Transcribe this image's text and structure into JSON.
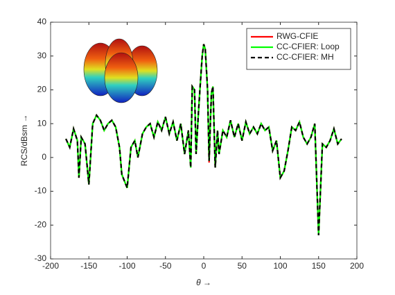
{
  "chart_data": {
    "type": "line",
    "xlabel": "θ →",
    "ylabel": "RCS/dBsm →",
    "x": [
      -180,
      -175,
      -170,
      -165,
      -163,
      -160,
      -155,
      -150,
      -145,
      -140,
      -135,
      -130,
      -125,
      -120,
      -115,
      -110,
      -107,
      -100,
      -95,
      -90,
      -86,
      -80,
      -75,
      -70,
      -65,
      -60,
      -55,
      -50,
      -45,
      -40,
      -35,
      -30,
      -25,
      -20,
      -17,
      -15,
      -12,
      -10,
      -7,
      -5,
      -2,
      0,
      2,
      5,
      7,
      10,
      12,
      15,
      18,
      20,
      25,
      30,
      35,
      40,
      45,
      50,
      55,
      60,
      65,
      70,
      75,
      80,
      85,
      90,
      95,
      100,
      105,
      110,
      115,
      120,
      125,
      130,
      135,
      140,
      145,
      150,
      155,
      160,
      165,
      170,
      175,
      180
    ],
    "series": [
      {
        "name": "RWG-CFIE",
        "color": "#ff0000",
        "dash": false,
        "values": [
          5.5,
          3,
          8.5,
          5,
          -6,
          6,
          4,
          -8,
          10,
          12.5,
          11,
          8,
          10,
          11,
          9,
          3,
          -5,
          -9,
          3,
          5,
          0,
          7,
          9,
          10,
          6,
          10.5,
          8,
          12,
          7,
          10.5,
          5,
          10,
          1,
          8,
          -3,
          21,
          20,
          1,
          13,
          20,
          30,
          33.5,
          32,
          20,
          -1.5,
          19,
          21,
          -3,
          8,
          1,
          8,
          6,
          11,
          6,
          10,
          5,
          10.5,
          7,
          9,
          7,
          10,
          8,
          9,
          2,
          5,
          -6,
          -4,
          2,
          9,
          8,
          10.5,
          6,
          4,
          6,
          10,
          -23,
          4,
          3,
          5,
          8.5,
          4,
          5.5
        ]
      },
      {
        "name": "CC-CFIER: Loop",
        "color": "#00ff00",
        "dash": false,
        "values": [
          5.5,
          3,
          8.5,
          5,
          -6,
          6,
          4,
          -8,
          10,
          12.5,
          11,
          8,
          10,
          11,
          9,
          3,
          -5,
          -9,
          3,
          5,
          0,
          7,
          9,
          10,
          6,
          10.5,
          8,
          12,
          7,
          10.5,
          5,
          10,
          1,
          8,
          -3,
          21,
          20,
          1,
          13,
          20,
          30,
          33.5,
          32,
          20,
          -1,
          19,
          21,
          -3,
          8,
          1,
          8,
          6,
          11,
          6,
          10,
          5,
          10.5,
          7,
          9,
          7,
          10,
          8,
          9,
          2,
          5,
          -6,
          -4,
          2,
          9,
          8,
          10.5,
          6,
          4,
          6,
          10,
          -23,
          4,
          3,
          5,
          8.5,
          4,
          5.5
        ]
      },
      {
        "name": "CC-CFIER: MH",
        "color": "#000000",
        "dash": true,
        "values": [
          5.5,
          3,
          8.5,
          5,
          -6,
          6,
          4,
          -8,
          10,
          12.5,
          11,
          8,
          10,
          11,
          9,
          3,
          -5,
          -9,
          3,
          5,
          0,
          7,
          9,
          10,
          6,
          10.5,
          8,
          12,
          7,
          10.5,
          5,
          10,
          1,
          8,
          -3,
          21,
          20,
          1,
          13,
          20,
          30,
          33.5,
          32,
          20,
          -1,
          19,
          21,
          -3,
          8,
          1,
          8,
          6,
          11,
          6,
          10,
          5,
          10.5,
          7,
          9,
          7,
          10,
          8,
          9,
          2,
          5,
          -6,
          -4,
          2,
          9,
          8,
          10.5,
          6,
          4,
          6,
          10,
          -23,
          4,
          3,
          5,
          8.5,
          4,
          5.5
        ]
      }
    ],
    "xlim": [
      -200,
      200
    ],
    "xticks": [
      -200,
      -150,
      -100,
      -50,
      0,
      50,
      100,
      150,
      200
    ],
    "ylim": [
      -30,
      40
    ],
    "yticks": [
      -30,
      -20,
      -10,
      0,
      10,
      20,
      30,
      40
    ],
    "grid": false,
    "legend": "upper right"
  }
}
